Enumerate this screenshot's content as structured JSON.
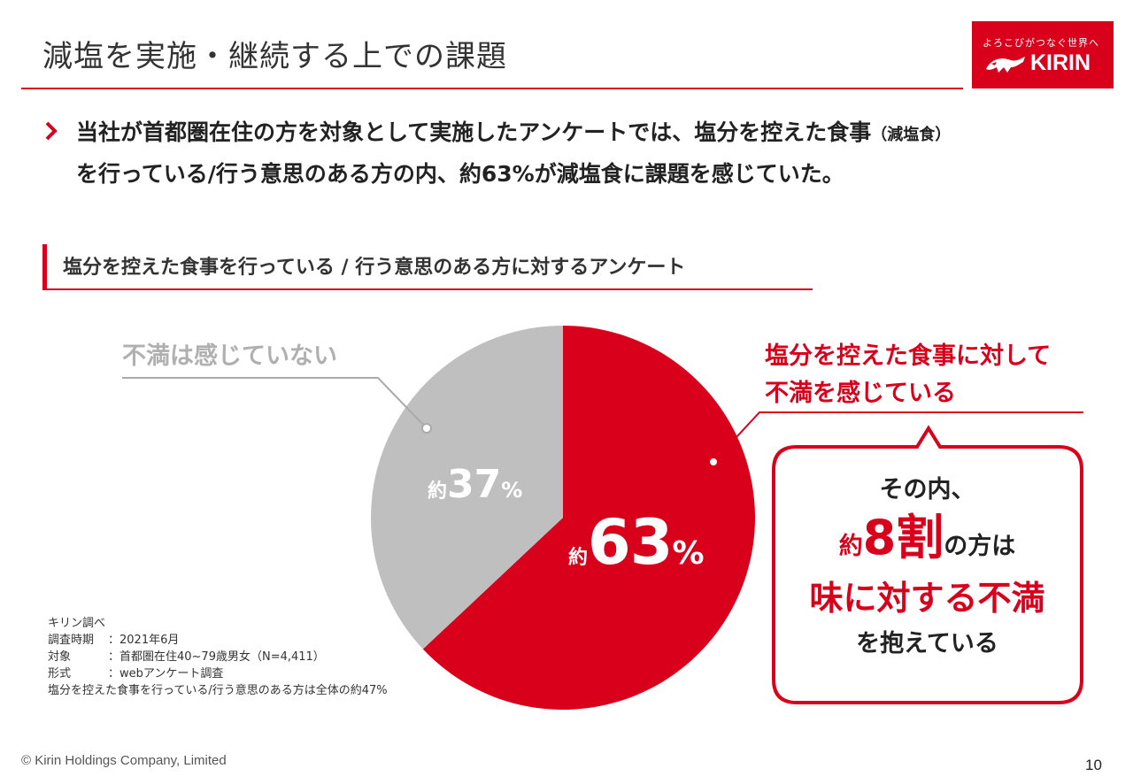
{
  "header": {
    "title": "減塩を実施・継続する上での課題",
    "logo_tagline": "よろこびがつなぐ世界へ",
    "logo_name": "KIRIN"
  },
  "lead": {
    "line1_main": "当社が首都圏在住の方を対象として実施したアンケートでは、塩分を控えた食事",
    "line1_small": "（減塩食）",
    "line2": "を行っている/行う意思のある方の内、約63%が減塩食に課題を感じていた。"
  },
  "section_heading": "塩分を控えた食事を行っている / 行う意思のある方に対するアンケート",
  "chart_data": {
    "type": "pie",
    "slices": [
      {
        "label": "塩分を控えた食事に対して不満を感じている",
        "value": 63,
        "value_text": "63",
        "prefix": "約",
        "unit": "%",
        "color": "#d9001b"
      },
      {
        "label": "不満は感じていない",
        "value": 37,
        "value_text": "37",
        "prefix": "約",
        "unit": "%",
        "color": "#bfbfbf"
      }
    ],
    "start_angle_deg": 0,
    "direction": "clockwise"
  },
  "labels": {
    "gray": "不満は感じていない",
    "red_line1": "塩分を控えた食事に対して",
    "red_line2": "不満を感じている"
  },
  "callout": {
    "line1": "その内、",
    "prefix": "約",
    "big": "8割",
    "suffix": "の方は",
    "line3": "味に対する不満",
    "line4": "を抱えている"
  },
  "notes": {
    "source": "キリン調べ",
    "period_key": "調査時期",
    "period_val": "：2021年6月",
    "target_key": "対象",
    "target_val": "：首都圏在住40~79歳男女（N=4,411）",
    "format_key": "形式",
    "format_val": "：webアンケート調査",
    "footnote": "塩分を控えた食事を行っている/行う意思のある方は全体の約47%"
  },
  "footer": {
    "copyright": "© Kirin Holdings Company, Limited",
    "page": "10"
  },
  "colors": {
    "accent": "#d9001b",
    "gray": "#bfbfbf",
    "gray_text": "#b0b0b0"
  }
}
